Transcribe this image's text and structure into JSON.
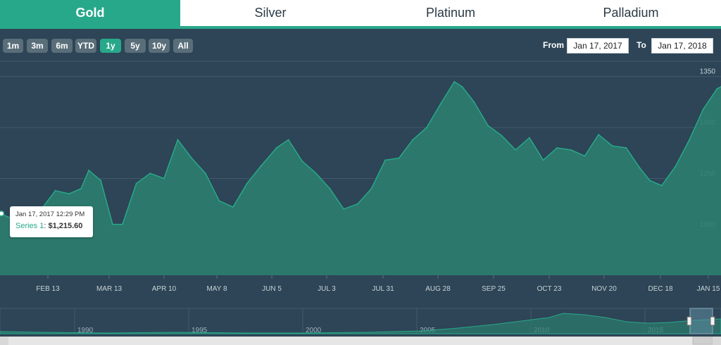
{
  "tabs": [
    {
      "label": "Gold",
      "active": true
    },
    {
      "label": "Silver",
      "active": false
    },
    {
      "label": "Platinum",
      "active": false
    },
    {
      "label": "Palladium",
      "active": false
    }
  ],
  "zoom_buttons": [
    {
      "label": "1m",
      "selected": false
    },
    {
      "label": "3m",
      "selected": false
    },
    {
      "label": "6m",
      "selected": false
    },
    {
      "label": "YTD",
      "selected": false
    },
    {
      "label": "1y",
      "selected": true
    },
    {
      "label": "5y",
      "selected": false
    },
    {
      "label": "10y",
      "selected": false
    },
    {
      "label": "All",
      "selected": false
    }
  ],
  "range": {
    "from_label": "From",
    "from_value": "Jan 17, 2017",
    "to_label": "To",
    "to_value": "Jan 17, 2018"
  },
  "tooltip": {
    "date": "Jan 17, 2017 12:29 PM",
    "series_name": "Series 1",
    "value": "$1,215.60"
  },
  "colors": {
    "accent": "#28a88a",
    "background": "#2d4556",
    "area_fill": "#2c7d6f",
    "area_line": "#28a88a"
  },
  "chart_data": {
    "type": "area",
    "xlabel": "",
    "ylabel": "",
    "ylim": [
      1155,
      1365
    ],
    "yticks": [
      1200,
      1250,
      1300,
      1350
    ],
    "x_tick_labels": [
      "FEB 13",
      "MAR 13",
      "APR 10",
      "MAY 8",
      "JUN 5",
      "JUL 3",
      "JUL 31",
      "AUG 28",
      "SEP 25",
      "OCT 23",
      "NOV 20",
      "DEC 18",
      "JAN 15"
    ],
    "x": [
      "2017-01-17",
      "2017-01-24",
      "2017-01-31",
      "2017-02-07",
      "2017-02-14",
      "2017-02-21",
      "2017-02-27",
      "2017-03-03",
      "2017-03-09",
      "2017-03-15",
      "2017-03-20",
      "2017-03-27",
      "2017-04-03",
      "2017-04-10",
      "2017-04-17",
      "2017-04-24",
      "2017-05-01",
      "2017-05-08",
      "2017-05-15",
      "2017-05-22",
      "2017-05-29",
      "2017-06-06",
      "2017-06-12",
      "2017-06-19",
      "2017-06-26",
      "2017-07-03",
      "2017-07-10",
      "2017-07-17",
      "2017-07-24",
      "2017-07-31",
      "2017-08-07",
      "2017-08-14",
      "2017-08-21",
      "2017-08-28",
      "2017-09-04",
      "2017-09-08",
      "2017-09-14",
      "2017-09-21",
      "2017-09-28",
      "2017-10-05",
      "2017-10-12",
      "2017-10-19",
      "2017-10-26",
      "2017-11-02",
      "2017-11-09",
      "2017-11-16",
      "2017-11-23",
      "2017-11-30",
      "2017-12-07",
      "2017-12-12",
      "2017-12-18",
      "2017-12-25",
      "2018-01-01",
      "2018-01-08",
      "2018-01-15",
      "2018-01-17"
    ],
    "series": [
      {
        "values": [
          1215.6,
          1210,
          1200,
          1220,
          1238,
          1235,
          1240,
          1258,
          1248,
          1205,
          1205,
          1245,
          1255,
          1250,
          1288,
          1270,
          1255,
          1228,
          1222,
          1245,
          1262,
          1280,
          1288,
          1267,
          1255,
          1240,
          1220,
          1225,
          1240,
          1268,
          1270,
          1288,
          1300,
          1323,
          1345,
          1340,
          1325,
          1302,
          1292,
          1278,
          1290,
          1268,
          1280,
          1278,
          1272,
          1293,
          1282,
          1280,
          1260,
          1248,
          1243,
          1262,
          1288,
          1318,
          1338,
          1340
        ]
      }
    ],
    "navigator": {
      "labels": [
        "1990",
        "1995",
        "2000",
        "2005",
        "2010",
        "2015"
      ]
    }
  }
}
